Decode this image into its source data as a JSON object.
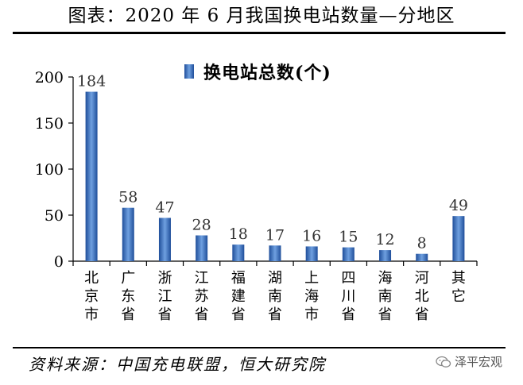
{
  "header": {
    "title": "图表：2020 年 6 月我国换电站数量—分地区"
  },
  "footer": {
    "source": "资料来源：中国充电联盟，恒大研究院",
    "brand": "泽平宏观"
  },
  "colors": {
    "bar": "#3a6fc2",
    "bar_dark": "#1f4e9a",
    "bar_light": "#6fa0e0"
  },
  "chart_data": {
    "type": "bar",
    "title": "",
    "xlabel": "",
    "ylabel": "",
    "ylim": [
      0,
      200
    ],
    "yticks": [
      0,
      50,
      100,
      150,
      200
    ],
    "categories": [
      "北京市",
      "广东省",
      "浙江省",
      "江苏省",
      "福建省",
      "湖南省",
      "上海市",
      "四川省",
      "海南省",
      "河北省",
      "其它"
    ],
    "series": [
      {
        "name": "换电站总数(个)",
        "values": [
          184,
          58,
          47,
          28,
          18,
          17,
          16,
          15,
          12,
          8,
          49
        ]
      }
    ]
  }
}
